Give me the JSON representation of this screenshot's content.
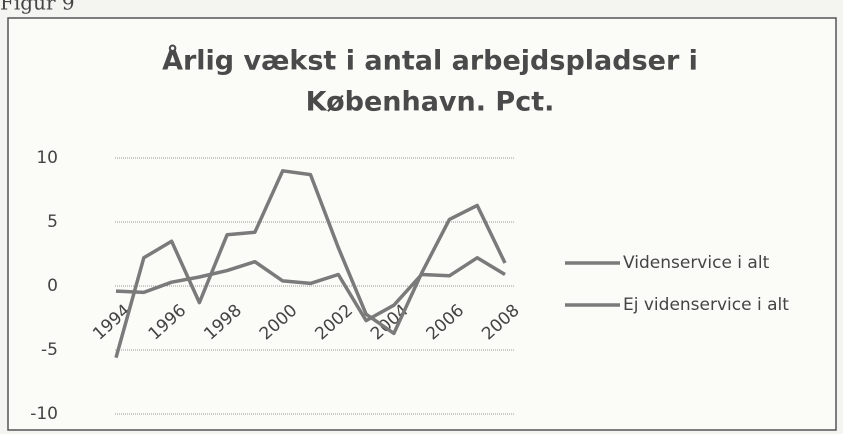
{
  "figure_label": "Figur 9",
  "chart_data": {
    "type": "line",
    "title": [
      "Årlig vækst i antal arbejdspladser i",
      "København. Pct."
    ],
    "categories": [
      "1994",
      null,
      "1996",
      null,
      "1998",
      null,
      "2000",
      null,
      "2002",
      null,
      "2004",
      null,
      "2006",
      null,
      "2008"
    ],
    "series": [
      {
        "name": "Videnservice i alt",
        "color": "#7a7a7a",
        "values": [
          -5.6,
          2.2,
          3.5,
          -1.3,
          4.0,
          4.2,
          9.0,
          8.7,
          3.0,
          -2.2,
          -3.7,
          1.0,
          5.2,
          6.3,
          1.8
        ]
      },
      {
        "name": "Ej videnservice i alt",
        "color": "#7a7a7a",
        "values": [
          -0.4,
          -0.5,
          0.3,
          0.7,
          1.2,
          1.9,
          0.4,
          0.2,
          0.9,
          -2.7,
          -1.5,
          0.9,
          0.8,
          2.2,
          0.9
        ]
      }
    ],
    "ylim": [
      -10,
      10
    ],
    "yticks": [
      -10,
      -5,
      0,
      5,
      10
    ],
    "grid": true,
    "legend": "right"
  }
}
